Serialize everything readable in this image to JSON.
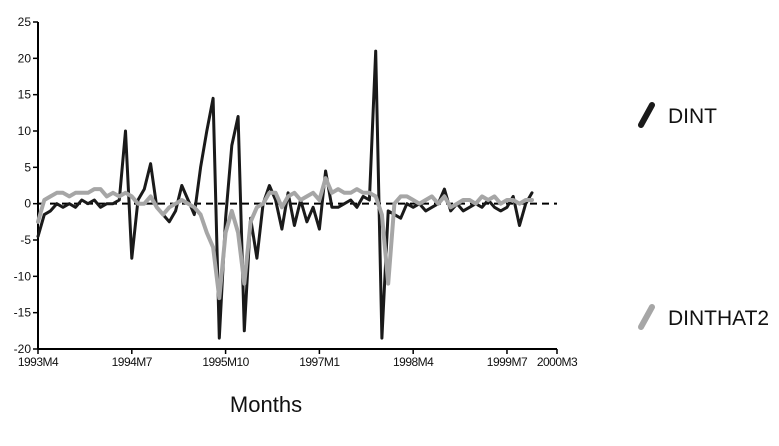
{
  "chart_data": {
    "type": "line",
    "title": "",
    "xlabel": "Months",
    "ylabel": "",
    "xlim": [
      0,
      83
    ],
    "ylim": [
      -20,
      25
    ],
    "yticks": [
      -20,
      -15,
      -10,
      -5,
      0,
      5,
      10,
      15,
      20,
      25
    ],
    "ytick_labels": [
      "-20",
      "-15",
      "-10",
      "-5",
      "0",
      "5",
      "10",
      "15",
      "20",
      "25"
    ],
    "xtick_labels": [
      "1993M4",
      "1994M7",
      "1995M10",
      "1997M1",
      "1998M4",
      "1999M7",
      "2000M3"
    ],
    "xtick_positions": [
      0,
      15,
      30,
      45,
      60,
      75,
      83
    ],
    "grid": false,
    "zero_line": "dashed",
    "legend_position": "right",
    "series": [
      {
        "name": "DINT",
        "color": "#1a1a1a",
        "x": [
          0,
          1,
          2,
          3,
          4,
          5,
          6,
          7,
          8,
          9,
          10,
          11,
          12,
          13,
          14,
          15,
          16,
          17,
          18,
          19,
          20,
          21,
          22,
          23,
          24,
          25,
          26,
          27,
          28,
          29,
          30,
          31,
          32,
          33,
          34,
          35,
          36,
          37,
          38,
          39,
          40,
          41,
          42,
          43,
          44,
          45,
          46,
          47,
          48,
          49,
          50,
          51,
          52,
          53,
          54,
          55,
          56,
          57,
          58,
          59,
          60,
          61,
          62,
          63,
          64,
          65,
          66,
          67,
          68,
          69,
          70,
          71,
          72,
          73,
          74,
          75,
          76,
          77,
          78,
          79
        ],
        "values": [
          -4.5,
          -1.5,
          -1,
          0,
          -0.5,
          0,
          -0.5,
          0.5,
          0,
          0.5,
          -0.5,
          0,
          0,
          0.5,
          10,
          -7.5,
          0.5,
          2,
          5.5,
          -0.5,
          -1.5,
          -2.5,
          -1,
          2.5,
          0.5,
          -1.5,
          5,
          10,
          14.5,
          -18.5,
          -2,
          8,
          12,
          -17.5,
          -2,
          -7.5,
          0,
          2.5,
          0.5,
          -3.5,
          1.5,
          -3,
          0.5,
          -2.5,
          -0.5,
          -3.5,
          4.5,
          -0.5,
          -0.5,
          0,
          0.5,
          -0.5,
          1,
          0.5,
          21,
          -18.5,
          -1,
          -1.5,
          -2,
          0,
          -0.5,
          0,
          -1,
          -0.5,
          0,
          2,
          -1,
          0,
          -1,
          -0.5,
          0,
          -0.5,
          0.5,
          -0.5,
          -1,
          -0.5,
          1,
          -3,
          0,
          1.5
        ]
      },
      {
        "name": "DINTHAT2",
        "color": "#a6a6a6",
        "x": [
          0,
          1,
          2,
          3,
          4,
          5,
          6,
          7,
          8,
          9,
          10,
          11,
          12,
          13,
          14,
          15,
          16,
          17,
          18,
          19,
          20,
          21,
          22,
          23,
          24,
          25,
          26,
          27,
          28,
          29,
          30,
          31,
          32,
          33,
          34,
          35,
          36,
          37,
          38,
          39,
          40,
          41,
          42,
          43,
          44,
          45,
          46,
          47,
          48,
          49,
          50,
          51,
          52,
          53,
          54,
          55,
          56,
          57,
          58,
          59,
          60,
          61,
          62,
          63,
          64,
          65,
          66,
          67,
          68,
          69,
          70,
          71,
          72,
          73,
          74,
          75,
          76,
          77,
          78,
          79
        ],
        "values": [
          -2.5,
          0.5,
          1,
          1.5,
          1.5,
          1,
          1.5,
          1.5,
          1.5,
          2,
          2,
          1,
          1.5,
          1,
          1.5,
          1,
          0,
          0,
          1,
          -0.5,
          -1.5,
          -0.5,
          0,
          0.5,
          0,
          -0.5,
          -1.5,
          -4,
          -6,
          -13,
          -4,
          -1,
          -4,
          -11,
          -2.5,
          -0.5,
          0,
          1.5,
          1.5,
          -0.5,
          1,
          1.5,
          0.5,
          1,
          1.5,
          0.5,
          3.5,
          1.5,
          2,
          1.5,
          1.5,
          2,
          1.5,
          1.5,
          1,
          -1.5,
          -11,
          0,
          1,
          1,
          0.5,
          0,
          0.5,
          1,
          0,
          1,
          -0.5,
          0,
          0.5,
          0.5,
          0,
          1,
          0.5,
          1,
          0,
          0.5,
          0.5,
          0,
          0.5,
          0.5
        ]
      }
    ]
  }
}
